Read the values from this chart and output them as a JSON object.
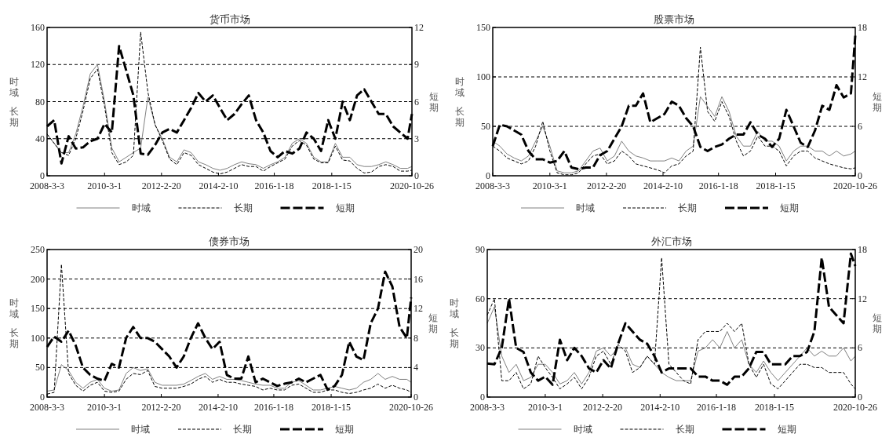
{
  "chart_data": [
    {
      "type": "line",
      "title": "货币市场",
      "ylabel": "时域长期",
      "y2label": "短期",
      "xlim": [
        "2008-03-03",
        "2020-10-26"
      ],
      "xticks": [
        {
          "value": "2008-03-03",
          "label": "2008-3-3"
        },
        {
          "value": "2010-03-01",
          "label": "2010-3-1"
        },
        {
          "value": "2012-02-20",
          "label": "2012-2-20"
        },
        {
          "value": "2014-02-10",
          "label": "2014-2-10"
        },
        {
          "value": "2016-01-18",
          "label": "2016-1-18"
        },
        {
          "value": "2018-01-15",
          "label": "2018-1-15"
        },
        {
          "value": "2020-10-26",
          "label": "2020-10-26"
        }
      ],
      "ylim": [
        0,
        160
      ],
      "yticks": [
        0,
        40,
        80,
        120,
        160
      ],
      "y2lim": [
        0,
        12
      ],
      "y2ticks": [
        0,
        3,
        6,
        9,
        12
      ],
      "grid": "y",
      "legend": "bottom",
      "x": [
        "2008-03-03",
        "2008-06-01",
        "2008-09-01",
        "2008-12-01",
        "2009-03-01",
        "2009-06-01",
        "2009-09-01",
        "2009-12-01",
        "2010-03-01",
        "2010-06-01",
        "2010-09-01",
        "2010-12-01",
        "2011-03-01",
        "2011-06-01",
        "2011-09-01",
        "2011-12-01",
        "2012-03-01",
        "2012-06-01",
        "2012-09-01",
        "2012-12-01",
        "2013-03-01",
        "2013-06-01",
        "2013-09-01",
        "2013-12-01",
        "2014-03-01",
        "2014-06-01",
        "2014-09-01",
        "2014-12-01",
        "2015-03-01",
        "2015-06-01",
        "2015-09-01",
        "2015-12-01",
        "2016-03-01",
        "2016-06-01",
        "2016-09-01",
        "2016-12-01",
        "2017-03-01",
        "2017-06-01",
        "2017-09-01",
        "2017-12-01",
        "2018-03-01",
        "2018-06-01",
        "2018-09-01",
        "2018-12-01",
        "2019-03-01",
        "2019-06-01",
        "2019-09-01",
        "2019-12-01",
        "2020-03-01",
        "2020-06-01",
        "2020-09-01",
        "2020-10-26"
      ],
      "series": [
        {
          "name": "时域",
          "color": "#808080",
          "line_style": "solid",
          "values": [
            45,
            35,
            25,
            25,
            45,
            75,
            110,
            120,
            80,
            30,
            15,
            20,
            25,
            30,
            85,
            55,
            40,
            20,
            15,
            28,
            25,
            15,
            12,
            8,
            6,
            8,
            12,
            15,
            13,
            12,
            8,
            12,
            15,
            20,
            35,
            40,
            35,
            20,
            15,
            15,
            35,
            20,
            20,
            12,
            10,
            10,
            12,
            15,
            12,
            8,
            8,
            10
          ]
        },
        {
          "name": "长期",
          "color": "#000000",
          "line_style": "dashed",
          "values": [
            45,
            35,
            25,
            22,
            40,
            70,
            105,
            115,
            75,
            25,
            12,
            15,
            22,
            155,
            90,
            55,
            38,
            18,
            12,
            25,
            22,
            12,
            8,
            4,
            2,
            4,
            8,
            12,
            10,
            10,
            5,
            10,
            14,
            18,
            32,
            38,
            33,
            18,
            14,
            14,
            32,
            17,
            16,
            8,
            3,
            4,
            10,
            12,
            10,
            5,
            5,
            6
          ]
        },
        {
          "name": "短期",
          "color": "#000000",
          "line_style": "dashed",
          "axis": "y2",
          "values": [
            4.0,
            4.5,
            1.0,
            3.2,
            2.2,
            2.3,
            2.8,
            3.0,
            4.2,
            3.5,
            10.5,
            8.5,
            6.5,
            1.8,
            1.7,
            2.5,
            3.5,
            3.8,
            3.5,
            4.5,
            5.5,
            6.7,
            6.0,
            6.5,
            5.5,
            4.5,
            5.0,
            5.8,
            6.5,
            4.5,
            3.5,
            2.0,
            1.5,
            2.0,
            1.8,
            2.2,
            3.5,
            3.0,
            2.0,
            4.5,
            3.0,
            6.0,
            4.5,
            6.5,
            7.0,
            6.0,
            5.0,
            5.0,
            4.0,
            3.5,
            3.0,
            5.0
          ]
        }
      ]
    },
    {
      "type": "line",
      "title": "股票市场",
      "ylabel": "时域长期",
      "y2label": "短期",
      "xlim": [
        "2008-03-03",
        "2020-10-26"
      ],
      "xticks": [
        {
          "value": "2008-03-03",
          "label": "2008-3-3"
        },
        {
          "value": "2010-03-01",
          "label": "2010-3-1"
        },
        {
          "value": "2012-02-20",
          "label": "2012-2-20"
        },
        {
          "value": "2014-02-10",
          "label": "2014-2-10"
        },
        {
          "value": "2016-01-18",
          "label": "2016-1-18"
        },
        {
          "value": "2018-01-15",
          "label": "2018-1-15"
        },
        {
          "value": "2020-10-26",
          "label": "2020-10-26"
        }
      ],
      "ylim": [
        0,
        150
      ],
      "yticks": [
        0,
        50,
        100,
        150
      ],
      "y2lim": [
        0,
        18
      ],
      "y2ticks": [
        0,
        6,
        12,
        18
      ],
      "grid": "y",
      "legend": "bottom",
      "x": [
        "2008-03-03",
        "2008-06-01",
        "2008-09-01",
        "2008-12-01",
        "2009-03-01",
        "2009-06-01",
        "2009-09-01",
        "2009-12-01",
        "2010-03-01",
        "2010-06-01",
        "2010-09-01",
        "2010-12-01",
        "2011-03-01",
        "2011-06-01",
        "2011-09-01",
        "2011-12-01",
        "2012-03-01",
        "2012-06-01",
        "2012-09-01",
        "2012-12-01",
        "2013-03-01",
        "2013-06-01",
        "2013-09-01",
        "2013-12-01",
        "2014-03-01",
        "2014-06-01",
        "2014-09-01",
        "2014-12-01",
        "2015-03-01",
        "2015-06-01",
        "2015-09-01",
        "2015-12-01",
        "2016-03-01",
        "2016-06-01",
        "2016-09-01",
        "2016-12-01",
        "2017-03-01",
        "2017-06-01",
        "2017-09-01",
        "2017-12-01",
        "2018-03-01",
        "2018-06-01",
        "2018-09-01",
        "2018-12-01",
        "2019-03-01",
        "2019-06-01",
        "2019-09-01",
        "2019-12-01",
        "2020-03-01",
        "2020-06-01",
        "2020-09-01",
        "2020-10-26"
      ],
      "series": [
        {
          "name": "时域",
          "color": "#808080",
          "line_style": "solid",
          "values": [
            35,
            30,
            22,
            18,
            15,
            20,
            35,
            50,
            30,
            5,
            3,
            3,
            5,
            15,
            25,
            28,
            15,
            20,
            35,
            25,
            20,
            18,
            15,
            15,
            15,
            18,
            15,
            25,
            30,
            80,
            70,
            60,
            80,
            65,
            40,
            30,
            30,
            45,
            35,
            35,
            30,
            15,
            25,
            30,
            30,
            25,
            25,
            20,
            25,
            20,
            22,
            25
          ]
        },
        {
          "name": "长期",
          "color": "#000000",
          "line_style": "dashed",
          "values": [
            30,
            25,
            18,
            15,
            12,
            15,
            30,
            55,
            25,
            3,
            1,
            1,
            3,
            12,
            20,
            22,
            12,
            15,
            25,
            20,
            12,
            10,
            8,
            6,
            3,
            10,
            12,
            20,
            25,
            130,
            65,
            55,
            75,
            60,
            35,
            20,
            25,
            40,
            30,
            30,
            25,
            10,
            20,
            25,
            25,
            18,
            15,
            12,
            10,
            8,
            7,
            8
          ]
        },
        {
          "name": "短期",
          "color": "#000000",
          "line_style": "dashed",
          "axis": "y2",
          "values": [
            3.6,
            6.2,
            6.0,
            5.5,
            5.0,
            3.0,
            2.0,
            2.0,
            1.6,
            1.8,
            3.0,
            1.0,
            0.8,
            1.0,
            1.0,
            2.5,
            3.0,
            4.5,
            6.0,
            8.5,
            8.5,
            10.0,
            6.5,
            7.0,
            7.5,
            9.0,
            8.5,
            7.0,
            6.0,
            3.5,
            3.0,
            3.5,
            3.8,
            4.5,
            5.0,
            5.0,
            6.5,
            5.0,
            4.5,
            3.5,
            4.5,
            8.0,
            6.0,
            4.0,
            3.5,
            5.5,
            8.5,
            8.0,
            11.0,
            9.5,
            10.0,
            17.0
          ]
        }
      ]
    },
    {
      "type": "line",
      "title": "债券市场",
      "ylabel": "时域长期",
      "y2label": "短期",
      "xlim": [
        "2008-03-03",
        "2020-10-26"
      ],
      "xticks": [
        {
          "value": "2008-03-03",
          "label": "2008-3-3"
        },
        {
          "value": "2010-03-01",
          "label": "2010-3-1"
        },
        {
          "value": "2012-02-20",
          "label": "2012-2-20"
        },
        {
          "value": "2014-02-10",
          "label": "2014-2-10"
        },
        {
          "value": "2016-01-18",
          "label": "2016-1-18"
        },
        {
          "value": "2018-01-15",
          "label": "2018-1-15"
        },
        {
          "value": "2020-10-26",
          "label": "2020-10-26"
        }
      ],
      "ylim": [
        0,
        250
      ],
      "yticks": [
        0,
        50,
        100,
        150,
        200,
        250
      ],
      "y2lim": [
        0,
        20
      ],
      "y2ticks": [
        0,
        4,
        8,
        12,
        16,
        20
      ],
      "grid": "y",
      "legend": "bottom",
      "x": [
        "2008-03-03",
        "2008-06-01",
        "2008-09-01",
        "2008-12-01",
        "2009-03-01",
        "2009-06-01",
        "2009-09-01",
        "2009-12-01",
        "2010-03-01",
        "2010-06-01",
        "2010-09-01",
        "2010-12-01",
        "2011-03-01",
        "2011-06-01",
        "2011-09-01",
        "2011-12-01",
        "2012-03-01",
        "2012-06-01",
        "2012-09-01",
        "2012-12-01",
        "2013-03-01",
        "2013-06-01",
        "2013-09-01",
        "2013-12-01",
        "2014-03-01",
        "2014-06-01",
        "2014-09-01",
        "2014-12-01",
        "2015-03-01",
        "2015-06-01",
        "2015-09-01",
        "2015-12-01",
        "2016-03-01",
        "2016-06-01",
        "2016-09-01",
        "2016-12-01",
        "2017-03-01",
        "2017-06-01",
        "2017-09-01",
        "2017-12-01",
        "2018-03-01",
        "2018-06-01",
        "2018-09-01",
        "2018-12-01",
        "2019-03-01",
        "2019-06-01",
        "2019-09-01",
        "2019-12-01",
        "2020-03-01",
        "2020-06-01",
        "2020-09-01",
        "2020-10-26"
      ],
      "series": [
        {
          "name": "时域",
          "color": "#808080",
          "line_style": "solid",
          "values": [
            10,
            12,
            55,
            45,
            25,
            15,
            25,
            30,
            15,
            10,
            12,
            40,
            50,
            45,
            48,
            25,
            20,
            20,
            20,
            22,
            28,
            35,
            40,
            30,
            35,
            30,
            30,
            28,
            25,
            22,
            20,
            20,
            15,
            15,
            25,
            28,
            20,
            12,
            12,
            15,
            18,
            15,
            12,
            15,
            25,
            30,
            40,
            30,
            35,
            30,
            30,
            25
          ]
        },
        {
          "name": "长期",
          "color": "#000000",
          "line_style": "dashed",
          "values": [
            5,
            8,
            225,
            40,
            20,
            10,
            20,
            25,
            10,
            8,
            10,
            30,
            40,
            38,
            45,
            18,
            15,
            15,
            15,
            18,
            22,
            30,
            35,
            25,
            30,
            25,
            25,
            22,
            20,
            18,
            12,
            15,
            12,
            12,
            20,
            22,
            15,
            8,
            8,
            12,
            12,
            8,
            6,
            8,
            12,
            15,
            22,
            15,
            20,
            15,
            12,
            8
          ]
        },
        {
          "name": "短期",
          "color": "#000000",
          "line_style": "dashed",
          "axis": "y2",
          "values": [
            6.8,
            8.2,
            7.5,
            9.0,
            7.0,
            4.0,
            3.0,
            2.5,
            2.2,
            4.5,
            4.0,
            8.0,
            9.5,
            8.0,
            8.0,
            7.5,
            6.5,
            5.5,
            4.0,
            5.5,
            8.0,
            10.0,
            8.0,
            6.5,
            7.5,
            3.0,
            2.5,
            2.5,
            5.5,
            2.0,
            2.5,
            2.0,
            1.5,
            1.8,
            2.0,
            2.5,
            2.0,
            2.5,
            3.0,
            1.0,
            1.5,
            3.0,
            7.5,
            5.5,
            5.0,
            10.0,
            12.0,
            17.0,
            15.0,
            9.5,
            8.0,
            13.5
          ]
        }
      ]
    },
    {
      "type": "line",
      "title": "外汇市场",
      "ylabel": "时域长期",
      "y2label": "短期",
      "xlim": [
        "2008-03-03",
        "2020-10-26"
      ],
      "xticks": [
        {
          "value": "2008-03-03",
          "label": "2008-3-3"
        },
        {
          "value": "2010-03-01",
          "label": "2010-3-1"
        },
        {
          "value": "2012-02-20",
          "label": "2012-2-20"
        },
        {
          "value": "2014-02-10",
          "label": "2014-2-10"
        },
        {
          "value": "2016-01-18",
          "label": "2016-1-18"
        },
        {
          "value": "2018-01-15",
          "label": "2018-1-15"
        },
        {
          "value": "2020-10-26",
          "label": "2020-10-26"
        }
      ],
      "ylim": [
        0,
        90
      ],
      "yticks": [
        0,
        30,
        60,
        90
      ],
      "y2lim": [
        0,
        18
      ],
      "y2ticks": [
        0,
        6,
        12,
        18
      ],
      "grid": "y",
      "legend": "bottom",
      "x": [
        "2008-03-03",
        "2008-06-01",
        "2008-09-01",
        "2008-12-01",
        "2009-03-01",
        "2009-06-01",
        "2009-09-01",
        "2009-12-01",
        "2010-03-01",
        "2010-06-01",
        "2010-09-01",
        "2010-12-01",
        "2011-03-01",
        "2011-06-01",
        "2011-09-01",
        "2011-12-01",
        "2012-03-01",
        "2012-06-01",
        "2012-09-01",
        "2012-12-01",
        "2013-03-01",
        "2013-06-01",
        "2013-09-01",
        "2013-12-01",
        "2014-03-01",
        "2014-06-01",
        "2014-09-01",
        "2014-12-01",
        "2015-03-01",
        "2015-06-01",
        "2015-09-01",
        "2015-12-01",
        "2016-03-01",
        "2016-06-01",
        "2016-09-01",
        "2016-12-01",
        "2017-03-01",
        "2017-06-01",
        "2017-09-01",
        "2017-12-01",
        "2018-03-01",
        "2018-06-01",
        "2018-09-01",
        "2018-12-01",
        "2019-03-01",
        "2019-06-01",
        "2019-09-01",
        "2019-12-01",
        "2020-03-01",
        "2020-06-01",
        "2020-09-01",
        "2020-10-26"
      ],
      "series": [
        {
          "name": "时域",
          "color": "#808080",
          "line_style": "solid",
          "values": [
            45,
            55,
            25,
            15,
            20,
            10,
            12,
            20,
            20,
            15,
            8,
            10,
            15,
            8,
            15,
            28,
            30,
            25,
            30,
            30,
            20,
            18,
            25,
            20,
            15,
            12,
            10,
            10,
            10,
            28,
            30,
            35,
            30,
            40,
            30,
            35,
            20,
            15,
            22,
            15,
            10,
            15,
            20,
            25,
            30,
            25,
            28,
            25,
            25,
            30,
            22,
            25
          ]
        },
        {
          "name": "长期",
          "color": "#000000",
          "line_style": "dashed",
          "values": [
            50,
            60,
            10,
            10,
            15,
            5,
            8,
            25,
            18,
            12,
            5,
            8,
            12,
            5,
            12,
            25,
            28,
            20,
            32,
            28,
            15,
            18,
            25,
            20,
            85,
            20,
            15,
            10,
            8,
            35,
            40,
            40,
            40,
            45,
            40,
            45,
            20,
            12,
            20,
            8,
            5,
            10,
            15,
            20,
            20,
            18,
            18,
            15,
            15,
            15,
            8,
            5
          ]
        },
        {
          "name": "短期",
          "color": "#000000",
          "line_style": "dashed",
          "axis": "y2",
          "values": [
            4.1,
            4.0,
            6.0,
            12.0,
            6.0,
            5.5,
            3.0,
            2.0,
            2.5,
            1.5,
            7.0,
            4.5,
            6.0,
            5.0,
            3.5,
            3.0,
            4.5,
            3.5,
            6.5,
            9.0,
            8.0,
            7.0,
            6.5,
            5.0,
            3.0,
            3.5,
            3.5,
            3.5,
            3.5,
            2.5,
            2.5,
            2.0,
            2.0,
            1.5,
            2.5,
            2.5,
            3.5,
            5.5,
            5.5,
            4.0,
            4.0,
            4.0,
            5.0,
            5.0,
            5.5,
            8.0,
            17.0,
            11.0,
            10.0,
            9.0,
            17.5,
            16.0
          ]
        }
      ]
    }
  ]
}
